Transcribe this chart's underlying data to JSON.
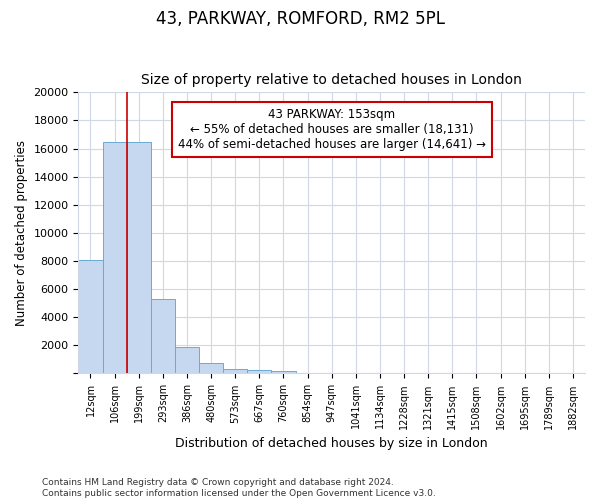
{
  "title": "43, PARKWAY, ROMFORD, RM2 5PL",
  "subtitle": "Size of property relative to detached houses in London",
  "xlabel": "Distribution of detached houses by size in London",
  "ylabel": "Number of detached properties",
  "bar_labels": [
    "12sqm",
    "106sqm",
    "199sqm",
    "293sqm",
    "386sqm",
    "480sqm",
    "573sqm",
    "667sqm",
    "760sqm",
    "854sqm",
    "947sqm",
    "1041sqm",
    "1134sqm",
    "1228sqm",
    "1321sqm",
    "1415sqm",
    "1508sqm",
    "1602sqm",
    "1695sqm",
    "1789sqm",
    "1882sqm"
  ],
  "bar_values": [
    8100,
    16500,
    16500,
    5300,
    1850,
    750,
    300,
    250,
    200,
    0,
    0,
    0,
    0,
    0,
    0,
    0,
    0,
    0,
    0,
    0,
    0
  ],
  "bar_color": "#c5d8f0",
  "bar_edgecolor": "#6aaad4",
  "vline_x": 1.5,
  "vline_color": "#cc0000",
  "annotation_text": "43 PARKWAY: 153sqm\n← 55% of detached houses are smaller (18,131)\n44% of semi-detached houses are larger (14,641) →",
  "annotation_box_color": "#ffffff",
  "annotation_box_edgecolor": "#cc0000",
  "ylim": [
    0,
    20000
  ],
  "yticks": [
    0,
    2000,
    4000,
    6000,
    8000,
    10000,
    12000,
    14000,
    16000,
    18000,
    20000
  ],
  "footer_text": "Contains HM Land Registry data © Crown copyright and database right 2024.\nContains public sector information licensed under the Open Government Licence v3.0.",
  "bg_color": "#ffffff",
  "grid_color": "#d0d8e8",
  "title_fontsize": 12,
  "subtitle_fontsize": 10
}
